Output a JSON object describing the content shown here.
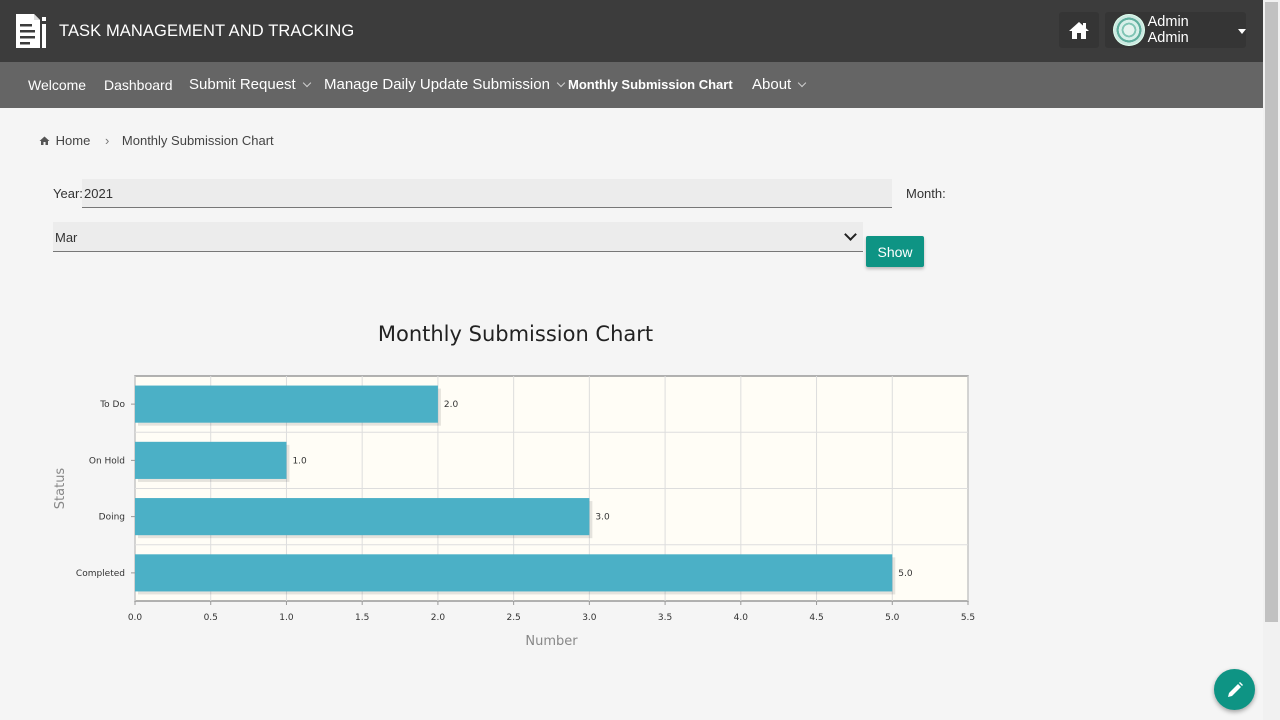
{
  "header": {
    "app_title": "TASK MANAGEMENT AND TRACKING",
    "user_name": "Admin Admin",
    "icons": [
      "document-logo-icon",
      "home-icon",
      "avatar",
      "caret-down-icon"
    ]
  },
  "nav": {
    "items": [
      {
        "label": "Welcome"
      },
      {
        "label": "Dashboard"
      },
      {
        "label": "Submit Request"
      },
      {
        "label": "Manage Daily Update Submission"
      },
      {
        "label": "Monthly Submission Chart"
      },
      {
        "label": "About"
      }
    ],
    "active_index": 4
  },
  "breadcrumb": {
    "home": "Home",
    "current": "Monthly Submission Chart"
  },
  "form": {
    "year_label": "Year:",
    "year_value": "2021",
    "month_label": "Month:",
    "month_value": "Mar",
    "show_label": "Show"
  },
  "colors": {
    "header_bg": "#3c3c3c",
    "nav_bg": "#656565",
    "accent": "#0e9484",
    "bar": "#4bb0c6"
  },
  "chart_data": {
    "type": "bar",
    "orientation": "horizontal",
    "title": "Monthly Submission Chart",
    "xlabel": "Number",
    "ylabel": "Status",
    "categories": [
      "To Do",
      "On Hold",
      "Doing",
      "Completed"
    ],
    "values": [
      2.0,
      1.0,
      3.0,
      5.0
    ],
    "value_labels": [
      "2.0",
      "1.0",
      "3.0",
      "5.0"
    ],
    "xlim": [
      0,
      5.5
    ],
    "x_ticks": [
      "0.0",
      "0.5",
      "1.0",
      "1.5",
      "2.0",
      "2.5",
      "3.0",
      "3.5",
      "4.0",
      "4.5",
      "5.0",
      "5.5"
    ],
    "grid": true,
    "legend": "none"
  }
}
